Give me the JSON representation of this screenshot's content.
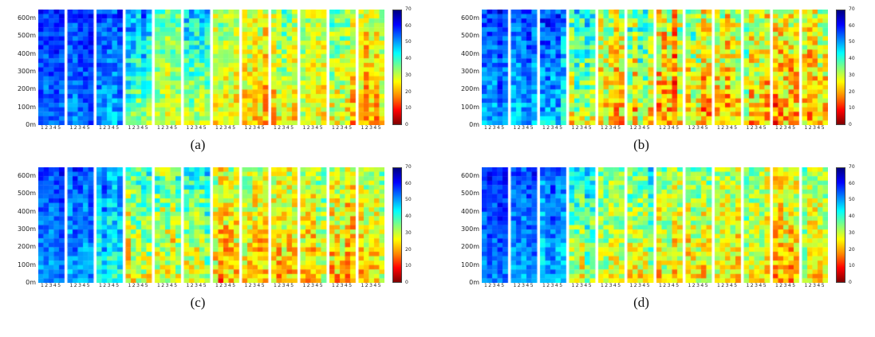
{
  "figure": {
    "background": "#ffffff",
    "panel_labels": [
      "(a)",
      "(b)",
      "(c)",
      "(d)"
    ]
  },
  "chart_data": {
    "type": "heatmap",
    "colormap": "jet_reversed (70=dark blue at top, 0=dark red at bottom)",
    "value_range": [
      0,
      70
    ],
    "colorbar_ticks": [
      70,
      60,
      50,
      40,
      30,
      20,
      10,
      0
    ],
    "y_ticks": [
      {
        "value": 600,
        "label": "600m"
      },
      {
        "value": 500,
        "label": "500m"
      },
      {
        "value": 400,
        "label": "400m"
      },
      {
        "value": 300,
        "label": "300m"
      },
      {
        "value": 200,
        "label": "200m"
      },
      {
        "value": 100,
        "label": "100m"
      },
      {
        "value": 0,
        "label": "0m"
      }
    ],
    "y_max_m": 650,
    "x_group_label": "12345",
    "n_groups": 12,
    "n_cols_per_group": 5,
    "n_rows": 26,
    "panels": [
      {
        "label": "(a)",
        "groups": [
          [
            58,
            53,
            5
          ],
          [
            58,
            53,
            5
          ],
          [
            56,
            49,
            6
          ],
          [
            50,
            33,
            8
          ],
          [
            36,
            29,
            7
          ],
          [
            45,
            30,
            8
          ],
          [
            33,
            27,
            7
          ],
          [
            30,
            23,
            8
          ],
          [
            33,
            25,
            8
          ],
          [
            31,
            27,
            7
          ],
          [
            34,
            25,
            9
          ],
          [
            29,
            21,
            8
          ]
        ]
      },
      {
        "label": "(b)",
        "groups": [
          [
            58,
            50,
            6
          ],
          [
            57,
            50,
            6
          ],
          [
            55,
            45,
            8
          ],
          [
            45,
            29,
            10
          ],
          [
            32,
            23,
            11
          ],
          [
            40,
            26,
            11
          ],
          [
            30,
            21,
            12
          ],
          [
            33,
            23,
            11
          ],
          [
            30,
            23,
            10
          ],
          [
            32,
            25,
            10
          ],
          [
            30,
            21,
            11
          ],
          [
            30,
            23,
            10
          ]
        ]
      },
      {
        "label": "(c)",
        "groups": [
          [
            57,
            51,
            5
          ],
          [
            57,
            50,
            6
          ],
          [
            54,
            44,
            7
          ],
          [
            40,
            27,
            10
          ],
          [
            34,
            25,
            10
          ],
          [
            42,
            28,
            9
          ],
          [
            32,
            23,
            10
          ],
          [
            34,
            25,
            9
          ],
          [
            32,
            25,
            9
          ],
          [
            34,
            25,
            9
          ],
          [
            30,
            21,
            10
          ],
          [
            32,
            25,
            8
          ]
        ]
      },
      {
        "label": "(d)",
        "groups": [
          [
            58,
            52,
            5
          ],
          [
            57,
            51,
            5
          ],
          [
            55,
            47,
            6
          ],
          [
            44,
            31,
            9
          ],
          [
            34,
            27,
            8
          ],
          [
            42,
            30,
            9
          ],
          [
            32,
            25,
            9
          ],
          [
            34,
            25,
            9
          ],
          [
            33,
            26,
            8
          ],
          [
            34,
            27,
            8
          ],
          [
            28,
            21,
            9
          ],
          [
            33,
            26,
            8
          ]
        ]
      }
    ],
    "groups_note": "each group entry = [approx value near top, approx value near bottom, random spread] in colorbar units (0-70)"
  }
}
